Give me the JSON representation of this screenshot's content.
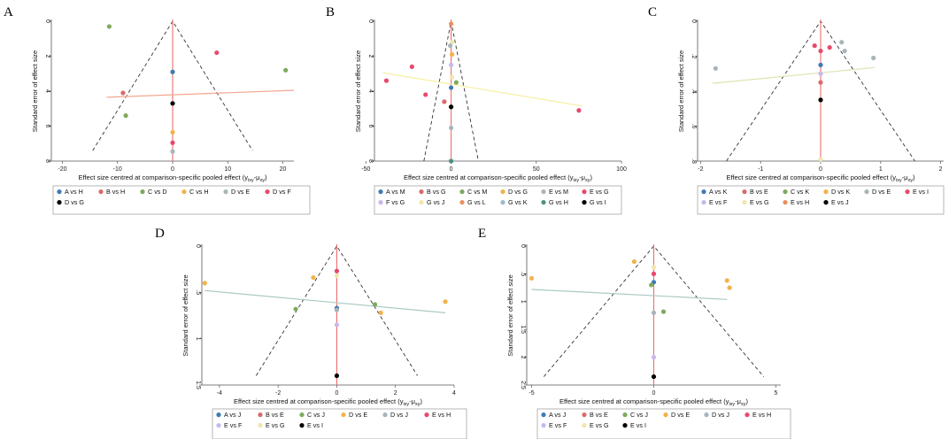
{
  "colors": {
    "null_line": "#ef6e6e",
    "funnel": "#333333",
    "pal": {
      "blue": "#3e7bb6",
      "red": "#d96b6b",
      "green": "#7daa5c",
      "orange": "#f3b24a",
      "gray": "#a8b5ba",
      "pink": "#e8496e",
      "black": "#000000",
      "lavender": "#c9b8ee",
      "cream": "#f1e6ad",
      "tan": "#e79160",
      "lightblue": "#9bbad1",
      "teal": "#4f8f84"
    }
  },
  "chart_data": [
    {
      "id": "A",
      "type": "scatter",
      "panel_label": "A",
      "xlabel": "Effect size centred at comparison-specific pooled effect (y",
      "xlabel_sub1": "ixy",
      "xlabel_mid": "-μ",
      "xlabel_sub2": "xy",
      "xlabel_end": ")",
      "ylabel": "Standard error of effect size",
      "xlim": [
        -22,
        22
      ],
      "ylim": [
        0,
        8
      ],
      "xticks": [
        -20,
        -10,
        0,
        10,
        20
      ],
      "xtick_labels": [
        "-20",
        "-10",
        "0",
        "10",
        "20"
      ],
      "yticks": [
        0,
        2,
        4,
        6,
        8
      ],
      "ytick_labels": [
        "0",
        "2",
        "4",
        "6",
        "8"
      ],
      "funnel": {
        "se_max": 7.4,
        "bottom_x": [
          -14.5,
          14.5
        ]
      },
      "fit_line": {
        "x": [
          -12,
          22
        ],
        "y": [
          4.35,
          3.95
        ],
        "color": "#f2a78f"
      },
      "points": [
        {
          "x": -11.5,
          "y": 0.3,
          "c": "green"
        },
        {
          "x": 8,
          "y": 1.8,
          "c": "pink"
        },
        {
          "x": 20.5,
          "y": 2.8,
          "c": "green"
        },
        {
          "x": 0,
          "y": 2.9,
          "c": "blue"
        },
        {
          "x": -9,
          "y": 4.1,
          "c": "red"
        },
        {
          "x": 0,
          "y": 4.7,
          "c": "black"
        },
        {
          "x": -8.5,
          "y": 5.4,
          "c": "green"
        },
        {
          "x": 0,
          "y": 6.35,
          "c": "orange"
        },
        {
          "x": 0,
          "y": 6.95,
          "c": "pink"
        },
        {
          "x": 0,
          "y": 7.45,
          "c": "gray"
        }
      ],
      "legend": [
        {
          "label": "A vs H",
          "c": "blue"
        },
        {
          "label": "B vs H",
          "c": "red"
        },
        {
          "label": "C vs D",
          "c": "green"
        },
        {
          "label": "C vs H",
          "c": "orange"
        },
        {
          "label": "D vs E",
          "c": "gray"
        },
        {
          "label": "D vs F",
          "c": "pink"
        },
        {
          "label": "D vs G",
          "c": "black"
        }
      ]
    },
    {
      "id": "B",
      "type": "scatter",
      "panel_label": "B",
      "xlabel": "Effect size centred at comparison-specific pooled effect (y",
      "xlabel_sub1": "ixy",
      "xlabel_mid": "-μ",
      "xlabel_sub2": "xy",
      "xlabel_end": ")",
      "ylabel": "Standard error of effect size",
      "xlim": [
        -45,
        100
      ],
      "ylim": [
        0,
        8
      ],
      "xticks": [
        -50,
        0,
        50,
        100
      ],
      "xtick_labels": [
        "-50",
        "0",
        "50",
        "100"
      ],
      "yticks": [
        0,
        2,
        4,
        6,
        8
      ],
      "ytick_labels": [
        "0",
        "2",
        "4",
        "6",
        "8"
      ],
      "funnel": {
        "se_max": 8,
        "bottom_x": [
          -16,
          16
        ]
      },
      "fit_line": {
        "x": [
          -40,
          77
        ],
        "y": [
          2.95,
          4.85
        ],
        "color": "#f6efa0"
      },
      "points": [
        {
          "x": 0,
          "y": 0.15,
          "c": "tan"
        },
        {
          "x": 0.5,
          "y": 1.2,
          "c": "cream"
        },
        {
          "x": -0.5,
          "y": 1.4,
          "c": "gray"
        },
        {
          "x": 0.5,
          "y": 1.9,
          "c": "orange"
        },
        {
          "x": 0,
          "y": 2.5,
          "c": "lavender"
        },
        {
          "x": -23,
          "y": 2.6,
          "c": "pink"
        },
        {
          "x": 0.5,
          "y": 3.2,
          "c": "cream"
        },
        {
          "x": 3,
          "y": 3.5,
          "c": "green"
        },
        {
          "x": -38,
          "y": 3.4,
          "c": "pink"
        },
        {
          "x": 0,
          "y": 3.8,
          "c": "blue"
        },
        {
          "x": -15,
          "y": 4.2,
          "c": "pink"
        },
        {
          "x": -4,
          "y": 4.6,
          "c": "red"
        },
        {
          "x": 0,
          "y": 4.9,
          "c": "black"
        },
        {
          "x": 75,
          "y": 5.1,
          "c": "pink"
        },
        {
          "x": 0,
          "y": 6.1,
          "c": "gray"
        },
        {
          "x": 0,
          "y": 8.0,
          "c": "teal"
        }
      ],
      "legend": [
        {
          "label": "A vs M",
          "c": "blue"
        },
        {
          "label": "B vs G",
          "c": "red"
        },
        {
          "label": "C vs M",
          "c": "green"
        },
        {
          "label": "D vs G",
          "c": "orange"
        },
        {
          "label": "E vs M",
          "c": "gray"
        },
        {
          "label": "E vs G",
          "c": "pink"
        },
        {
          "label": "F vs G",
          "c": "lavender"
        },
        {
          "label": "G vs J",
          "c": "cream"
        },
        {
          "label": "G vs L",
          "c": "tan"
        },
        {
          "label": "G vs K",
          "c": "lightblue"
        },
        {
          "label": "G vs H",
          "c": "teal"
        },
        {
          "label": "G vs I",
          "c": "black"
        }
      ]
    },
    {
      "id": "C",
      "type": "scatter",
      "panel_label": "C",
      "xlabel": "Effect size centred at comparison-specific pooled effect (y",
      "xlabel_sub1": "ixy",
      "xlabel_mid": "-μ",
      "xlabel_sub2": "xy",
      "xlabel_end": ")",
      "ylabel": "Standard error of effect size",
      "xlim": [
        -2.05,
        2.05
      ],
      "ylim": [
        0,
        0.8
      ],
      "xticks": [
        -2,
        -1,
        0,
        1,
        2
      ],
      "xtick_labels": [
        "-2",
        "-1",
        "0",
        "1",
        "2"
      ],
      "yticks": [
        0,
        0.2,
        0.4,
        0.6,
        0.8
      ],
      "ytick_labels": [
        "0",
        ".2",
        ".4",
        ".6",
        ".8"
      ],
      "funnel": {
        "se_max": 0.8,
        "bottom_x": [
          -1.57,
          1.57
        ]
      },
      "fit_line": {
        "x": [
          -1.8,
          0.9
        ],
        "y": [
          0.355,
          0.265
        ],
        "color": "#dfe3b0"
      },
      "points": [
        {
          "x": 0.35,
          "y": 0.12,
          "c": "gray"
        },
        {
          "x": -0.1,
          "y": 0.14,
          "c": "pink"
        },
        {
          "x": 0.15,
          "y": 0.15,
          "c": "pink"
        },
        {
          "x": 0,
          "y": 0.17,
          "c": "pink"
        },
        {
          "x": 0.4,
          "y": 0.17,
          "c": "gray"
        },
        {
          "x": 0.88,
          "y": 0.21,
          "c": "gray"
        },
        {
          "x": 0,
          "y": 0.25,
          "c": "blue"
        },
        {
          "x": -1.75,
          "y": 0.27,
          "c": "gray"
        },
        {
          "x": 0,
          "y": 0.3,
          "c": "lavender"
        },
        {
          "x": 0,
          "y": 0.35,
          "c": "red"
        },
        {
          "x": 0,
          "y": 0.45,
          "c": "black"
        },
        {
          "x": 0,
          "y": 0.79,
          "c": "cream"
        }
      ],
      "legend": [
        {
          "label": "A vs K",
          "c": "blue"
        },
        {
          "label": "B vs E",
          "c": "red"
        },
        {
          "label": "C vs K",
          "c": "green"
        },
        {
          "label": "D vs K",
          "c": "orange"
        },
        {
          "label": "D vs E",
          "c": "gray"
        },
        {
          "label": "E vs I",
          "c": "pink"
        },
        {
          "label": "E vs F",
          "c": "lavender"
        },
        {
          "label": "E vs G",
          "c": "cream"
        },
        {
          "label": "E vs H",
          "c": "tan"
        },
        {
          "label": "E vs J",
          "c": "black"
        }
      ]
    },
    {
      "id": "D",
      "type": "scatter",
      "panel_label": "D",
      "xlabel": "Effect size centred at comparison-specific pooled effect (y",
      "xlabel_sub1": "ixy",
      "xlabel_mid": "-μ",
      "xlabel_sub2": "xy",
      "xlabel_end": ")",
      "ylabel": "Standard error of effect size",
      "xlim": [
        -4.6,
        4.0
      ],
      "ylim": [
        0,
        1.5
      ],
      "xticks": [
        -4,
        -2,
        0,
        2,
        4
      ],
      "xtick_labels": [
        "-4",
        "-2",
        "0",
        "2",
        "4"
      ],
      "yticks": [
        0,
        0.5,
        1,
        1.5
      ],
      "ytick_labels": [
        "0",
        ".5",
        "1",
        "1.5"
      ],
      "funnel": {
        "se_max": 1.4,
        "bottom_x": [
          -2.75,
          2.75
        ]
      },
      "fit_line": {
        "x": [
          -4.5,
          3.7
        ],
        "y": [
          0.48,
          0.72
        ],
        "color": "#a9c9c4"
      },
      "points": [
        {
          "x": 0,
          "y": 0.27,
          "c": "pink"
        },
        {
          "x": 0,
          "y": 0.32,
          "c": "cream"
        },
        {
          "x": -0.8,
          "y": 0.34,
          "c": "orange"
        },
        {
          "x": -4.5,
          "y": 0.4,
          "c": "orange"
        },
        {
          "x": 3.7,
          "y": 0.6,
          "c": "orange"
        },
        {
          "x": 1.3,
          "y": 0.63,
          "c": "green"
        },
        {
          "x": -1.4,
          "y": 0.68,
          "c": "green"
        },
        {
          "x": 0,
          "y": 0.67,
          "c": "blue"
        },
        {
          "x": 0,
          "y": 0.69,
          "c": "gray"
        },
        {
          "x": 1.5,
          "y": 0.72,
          "c": "orange"
        },
        {
          "x": 0,
          "y": 0.85,
          "c": "lavender"
        },
        {
          "x": 0,
          "y": 1.4,
          "c": "black"
        }
      ],
      "legend": [
        {
          "label": "A vs J",
          "c": "blue"
        },
        {
          "label": "B vs E",
          "c": "red"
        },
        {
          "label": "C vs J",
          "c": "green"
        },
        {
          "label": "D vs E",
          "c": "orange"
        },
        {
          "label": "D vs J",
          "c": "gray"
        },
        {
          "label": "E vs H",
          "c": "pink"
        },
        {
          "label": "E vs F",
          "c": "lavender"
        },
        {
          "label": "E vs G",
          "c": "cream"
        },
        {
          "label": "E vs I",
          "c": "black"
        }
      ]
    },
    {
      "id": "E",
      "type": "scatter",
      "panel_label": "E",
      "xlabel": "Effect size centred at comparison-specific pooled effect (y",
      "xlabel_sub1": "ixy",
      "xlabel_mid": "-μ",
      "xlabel_sub2": "xy",
      "xlabel_end": ")",
      "ylabel": "Standard error of effect size",
      "xlim": [
        -5.2,
        5.2
      ],
      "ylim": [
        0,
        2.5
      ],
      "xticks": [
        -5,
        0,
        5
      ],
      "xtick_labels": [
        "-5",
        "0",
        "5"
      ],
      "yticks": [
        0,
        0.5,
        1,
        1.5,
        2,
        2.5
      ],
      "ytick_labels": [
        "0",
        ".5",
        "1",
        "1.5",
        "2",
        "2.5"
      ],
      "funnel": {
        "se_max": 2.35,
        "bottom_x": [
          -4.5,
          4.5
        ]
      },
      "fit_line": {
        "x": [
          -5,
          3
        ],
        "y": [
          0.78,
          0.96
        ],
        "color": "#a9c9c4"
      },
      "points": [
        {
          "x": -0.8,
          "y": 0.28,
          "c": "orange"
        },
        {
          "x": 0,
          "y": 0.38,
          "c": "cream"
        },
        {
          "x": 0,
          "y": 0.5,
          "c": "pink"
        },
        {
          "x": -5,
          "y": 0.58,
          "c": "orange"
        },
        {
          "x": 3,
          "y": 0.62,
          "c": "orange"
        },
        {
          "x": 0,
          "y": 0.65,
          "c": "blue"
        },
        {
          "x": -0.1,
          "y": 0.7,
          "c": "green"
        },
        {
          "x": 3.1,
          "y": 0.75,
          "c": "orange"
        },
        {
          "x": 0,
          "y": 1.2,
          "c": "gray"
        },
        {
          "x": 0.4,
          "y": 1.18,
          "c": "green"
        },
        {
          "x": 0,
          "y": 2.0,
          "c": "lavender"
        },
        {
          "x": 0,
          "y": 2.35,
          "c": "black"
        }
      ],
      "legend": [
        {
          "label": "A vs J",
          "c": "blue"
        },
        {
          "label": "B vs E",
          "c": "red"
        },
        {
          "label": "C vs J",
          "c": "green"
        },
        {
          "label": "D vs E",
          "c": "orange"
        },
        {
          "label": "D vs J",
          "c": "gray"
        },
        {
          "label": "E vs H",
          "c": "pink"
        },
        {
          "label": "E vs F",
          "c": "lavender"
        },
        {
          "label": "E vs G",
          "c": "cream"
        },
        {
          "label": "E vs I",
          "c": "black"
        }
      ]
    }
  ]
}
